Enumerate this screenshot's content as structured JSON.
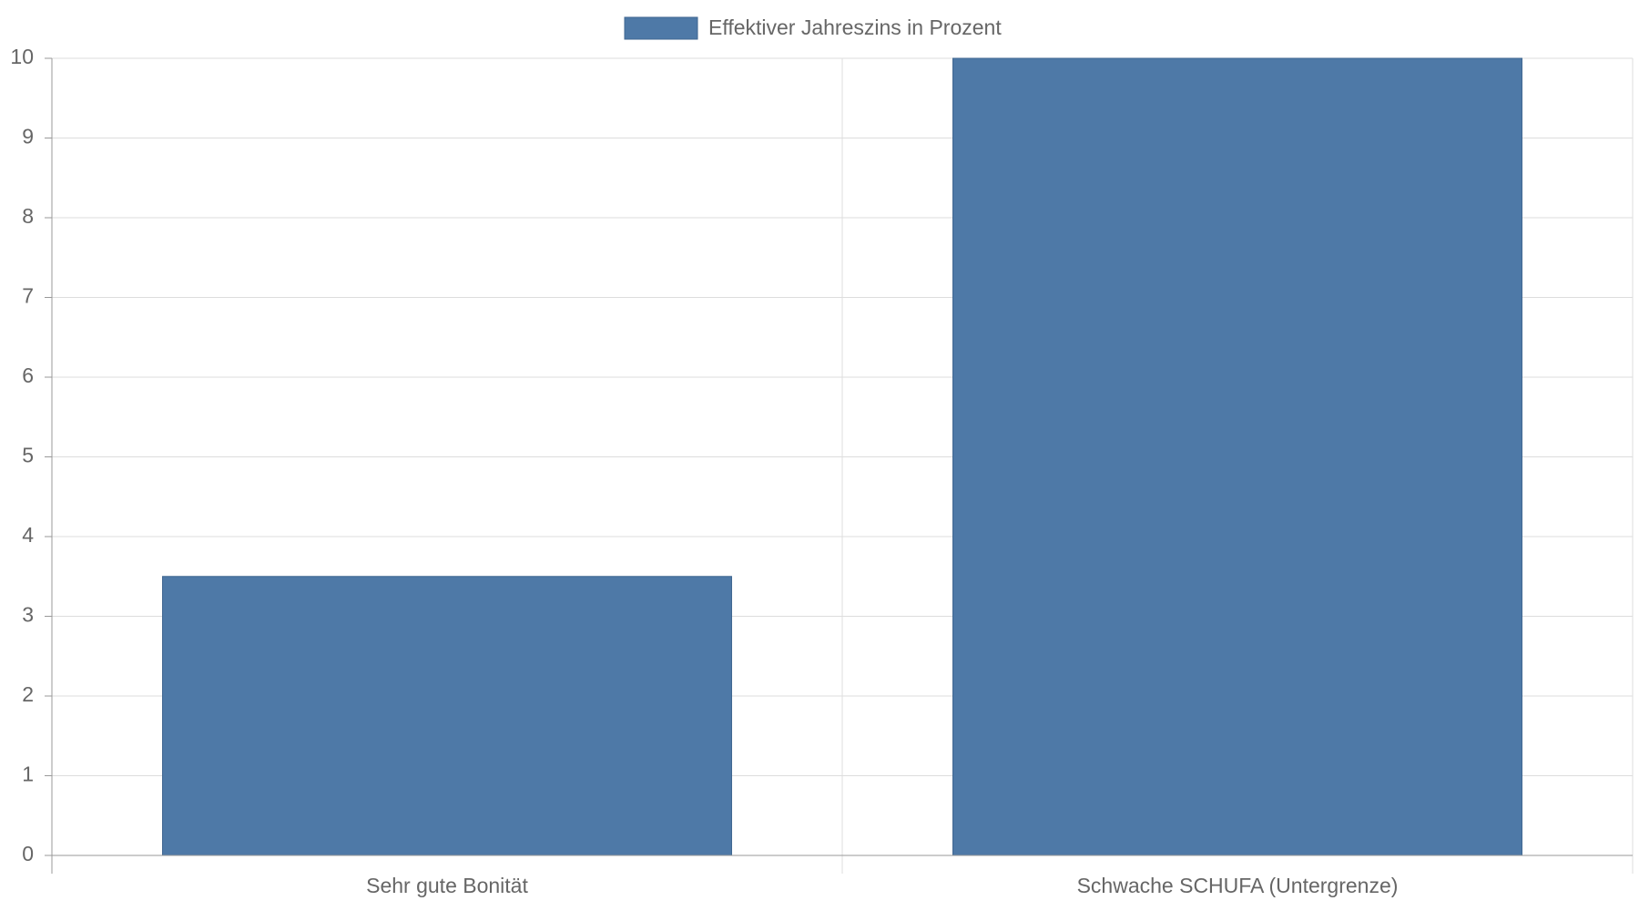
{
  "chart_data": {
    "type": "bar",
    "categories": [
      "Sehr gute Bonität",
      "Schwache SCHUFA (Untergrenze)"
    ],
    "series": [
      {
        "name": "Effektiver Jahreszins in Prozent",
        "color": "#4e79a7",
        "values": [
          3.5,
          10
        ]
      }
    ],
    "ylim": [
      0,
      10
    ],
    "yticks": [
      0,
      1,
      2,
      3,
      4,
      5,
      6,
      7,
      8,
      9,
      10
    ],
    "grid": true,
    "legend": "top"
  }
}
